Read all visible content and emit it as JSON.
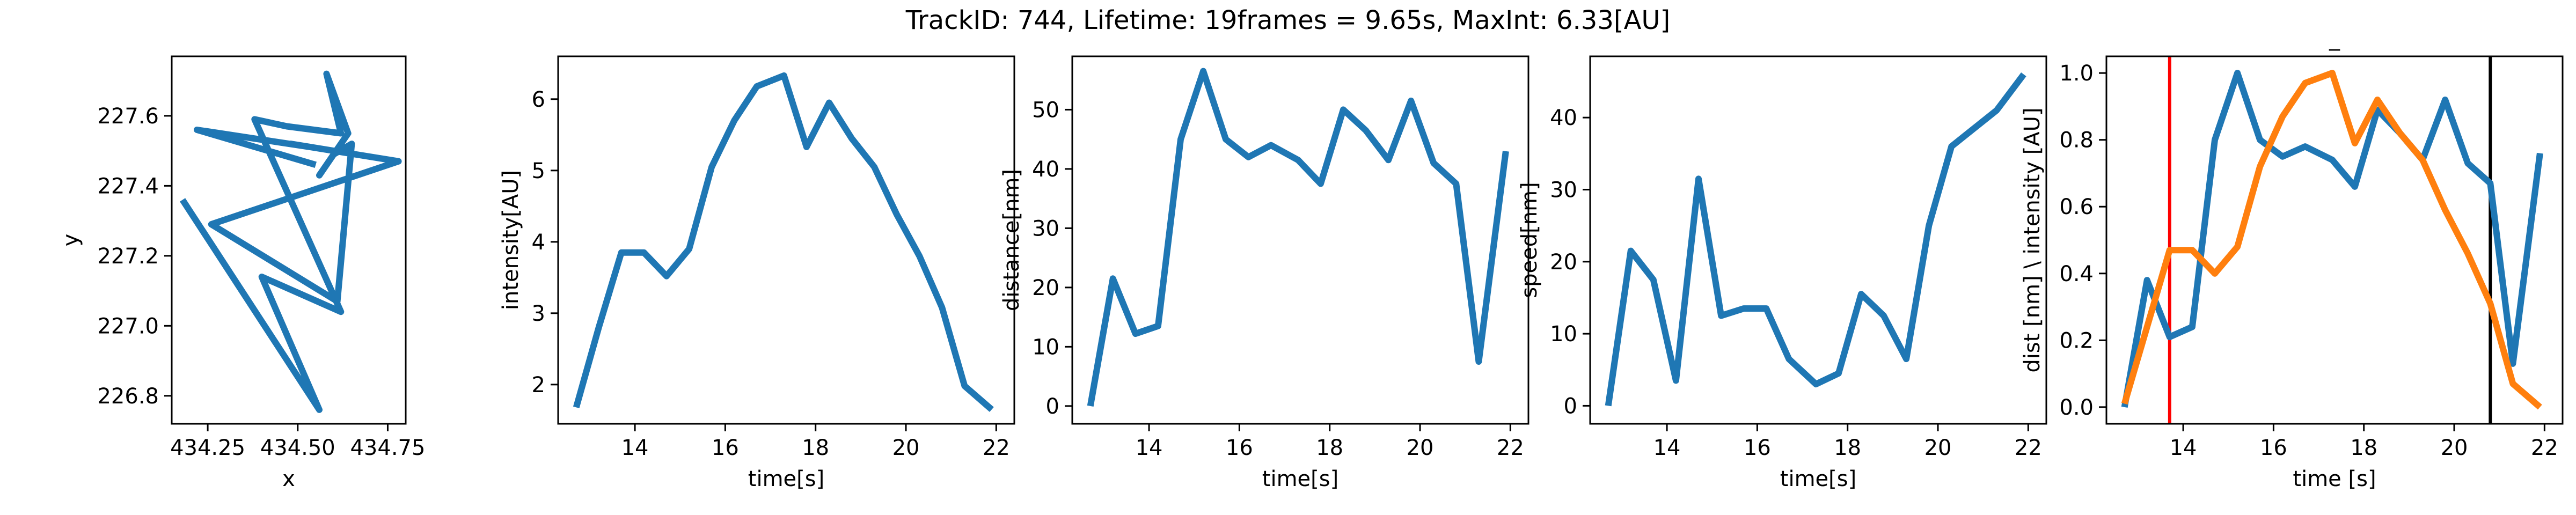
{
  "figure": {
    "title": "TrackID: 744, Lifetime: 19frames = 9.65s, MaxInt: 6.33[AU]",
    "line_color": "#1f77b4",
    "second_line_color": "#ff7f0e",
    "start_marker_color": "#ff0000",
    "end_marker_color": "#000000"
  },
  "chart_data": [
    {
      "type": "line",
      "title": "",
      "xlabel": "x",
      "ylabel": "y",
      "xlim": [
        434.15,
        434.8
      ],
      "ylim": [
        226.72,
        227.77
      ],
      "xticks": [
        434.25,
        434.5,
        434.75
      ],
      "xtick_labels": [
        "434.25",
        "434.50",
        "434.75"
      ],
      "yticks": [
        226.8,
        227.0,
        227.2,
        227.4,
        227.6
      ],
      "ytick_labels": [
        "226.8",
        "227.0",
        "227.2",
        "227.4",
        "227.6"
      ],
      "grid": false,
      "series": [
        {
          "x": [
            434.18,
            434.56,
            434.4,
            434.62,
            434.38,
            434.47,
            434.62,
            434.58,
            434.64,
            434.56,
            434.6,
            434.65,
            434.61,
            434.26,
            434.78,
            434.48,
            434.54,
            434.22,
            434.55
          ],
          "y": [
            227.36,
            226.76,
            227.14,
            227.04,
            227.59,
            227.57,
            227.55,
            227.72,
            227.55,
            227.43,
            227.49,
            227.52,
            227.07,
            227.29,
            227.47,
            227.52,
            227.51,
            227.56,
            227.46
          ]
        }
      ]
    },
    {
      "type": "line",
      "title": "",
      "xlabel": "time[s]",
      "ylabel": "intensity[AU]",
      "xlim": [
        12.3,
        22.4
      ],
      "ylim": [
        1.45,
        6.6
      ],
      "xticks": [
        14,
        16,
        18,
        20,
        22
      ],
      "xtick_labels": [
        "14",
        "16",
        "18",
        "20",
        "22"
      ],
      "yticks": [
        2,
        3,
        4,
        5,
        6
      ],
      "ytick_labels": [
        "2",
        "3",
        "4",
        "5",
        "6"
      ],
      "grid": false,
      "series": [
        {
          "x": [
            12.7,
            13.2,
            13.7,
            14.2,
            14.7,
            15.2,
            15.7,
            16.2,
            16.7,
            17.3,
            17.8,
            18.3,
            18.8,
            19.3,
            19.8,
            20.3,
            20.8,
            21.3,
            21.9
          ],
          "y": [
            1.68,
            2.8,
            3.85,
            3.85,
            3.52,
            3.9,
            5.05,
            5.7,
            6.18,
            6.33,
            5.33,
            5.95,
            5.45,
            5.05,
            4.38,
            3.8,
            3.08,
            1.98,
            1.65
          ]
        }
      ]
    },
    {
      "type": "line",
      "title": "",
      "xlabel": "time[s]",
      "ylabel": "distance[nm]",
      "xlim": [
        12.3,
        22.4
      ],
      "ylim": [
        -3,
        59
      ],
      "xticks": [
        14,
        16,
        18,
        20,
        22
      ],
      "xtick_labels": [
        "14",
        "16",
        "18",
        "20",
        "22"
      ],
      "yticks": [
        0,
        10,
        20,
        30,
        40,
        50
      ],
      "ytick_labels": [
        "0",
        "10",
        "20",
        "30",
        "40",
        "50"
      ],
      "grid": false,
      "series": [
        {
          "x": [
            12.7,
            13.2,
            13.7,
            14.2,
            14.7,
            15.2,
            15.7,
            16.2,
            16.7,
            17.3,
            17.8,
            18.3,
            18.8,
            19.3,
            19.8,
            20.3,
            20.8,
            21.3,
            21.9
          ],
          "y": [
            0,
            21.5,
            12.2,
            13.5,
            45,
            56.5,
            45,
            42,
            44,
            41.5,
            37.5,
            50,
            46.5,
            41.5,
            51.5,
            41,
            37.5,
            7.5,
            43
          ]
        }
      ]
    },
    {
      "type": "line",
      "title": "",
      "xlabel": "time[s]",
      "ylabel": "speed[nm]",
      "xlim": [
        12.3,
        22.4
      ],
      "ylim": [
        -2.5,
        48.5
      ],
      "xticks": [
        14,
        16,
        18,
        20,
        22
      ],
      "xtick_labels": [
        "14",
        "16",
        "18",
        "20",
        "22"
      ],
      "yticks": [
        0,
        10,
        20,
        30,
        40
      ],
      "ytick_labels": [
        "0",
        "10",
        "20",
        "30",
        "40"
      ],
      "grid": false,
      "series": [
        {
          "x": [
            12.7,
            13.2,
            13.7,
            14.2,
            14.7,
            15.2,
            15.7,
            16.2,
            16.7,
            17.3,
            17.8,
            18.3,
            18.8,
            19.3,
            19.8,
            20.3,
            20.8,
            21.3,
            21.9
          ],
          "y": [
            0,
            21.5,
            17.5,
            3.5,
            31.5,
            12.5,
            13.5,
            13.5,
            6.5,
            3,
            4.5,
            15.5,
            12.5,
            6.5,
            25,
            36,
            38.5,
            41,
            46
          ]
        }
      ]
    },
    {
      "type": "line",
      "title": "_",
      "xlabel": "time [s]",
      "ylabel": "dist [nm] \\ intensity [AU]",
      "xlim": [
        12.3,
        22.4
      ],
      "ylim": [
        -0.05,
        1.05
      ],
      "xticks": [
        14,
        16,
        18,
        20,
        22
      ],
      "xtick_labels": [
        "14",
        "16",
        "18",
        "20",
        "22"
      ],
      "yticks": [
        0.0,
        0.2,
        0.4,
        0.6,
        0.8,
        1.0
      ],
      "ytick_labels": [
        "0.0",
        "0.2",
        "0.4",
        "0.6",
        "0.8",
        "1.0"
      ],
      "grid": false,
      "vlines": [
        {
          "x": 13.7,
          "color": "#ff0000"
        },
        {
          "x": 20.8,
          "color": "#000000"
        }
      ],
      "series": [
        {
          "x": [
            12.7,
            13.2,
            13.7,
            14.2,
            14.7,
            15.2,
            15.7,
            16.2,
            16.7,
            17.3,
            17.8,
            18.3,
            18.8,
            19.3,
            19.8,
            20.3,
            20.8,
            21.3,
            21.9
          ],
          "y": [
            0,
            0.38,
            0.21,
            0.24,
            0.8,
            1.0,
            0.8,
            0.75,
            0.78,
            0.74,
            0.66,
            0.89,
            0.82,
            0.74,
            0.92,
            0.73,
            0.67,
            0.13,
            0.76
          ]
        },
        {
          "x": [
            12.7,
            13.2,
            13.7,
            14.2,
            14.7,
            15.2,
            15.7,
            16.2,
            16.7,
            17.3,
            17.8,
            18.3,
            18.8,
            19.3,
            19.8,
            20.3,
            20.8,
            21.3,
            21.9
          ],
          "y": [
            0.01,
            0.24,
            0.47,
            0.47,
            0.4,
            0.48,
            0.72,
            0.87,
            0.97,
            1.0,
            0.79,
            0.92,
            0.82,
            0.74,
            0.59,
            0.46,
            0.31,
            0.07,
            0.0
          ]
        }
      ]
    }
  ]
}
